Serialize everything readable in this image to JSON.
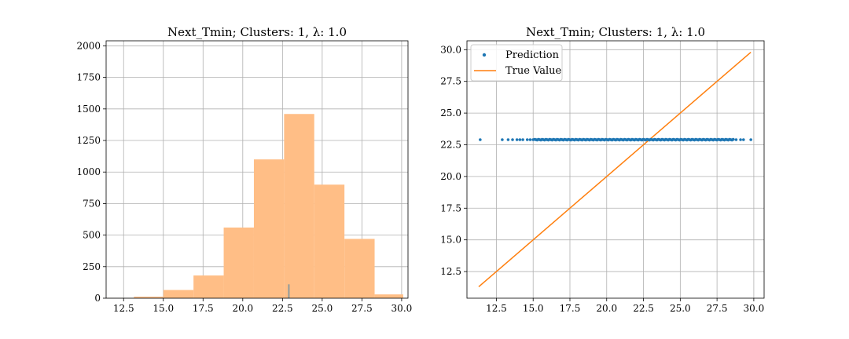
{
  "chart_data": [
    {
      "type": "bar",
      "title": "Next_Tmin; Clusters: 1, λ: 1.0",
      "xlim": [
        11.4,
        30.4
      ],
      "ylim": [
        0,
        2040
      ],
      "xticks": [
        12.5,
        15.0,
        17.5,
        20.0,
        22.5,
        25.0,
        27.5,
        30.0
      ],
      "xtick_labels": [
        "12.5",
        "15.0",
        "17.5",
        "20.0",
        "22.5",
        "25.0",
        "27.5",
        "30.0"
      ],
      "yticks": [
        0,
        250,
        500,
        750,
        1000,
        1250,
        1500,
        1750,
        2000
      ],
      "ytick_labels": [
        "0",
        "250",
        "500",
        "750",
        "1000",
        "1250",
        "1500",
        "1750",
        "2000"
      ],
      "grid": true,
      "color": "#ffbe86",
      "bins": [
        {
          "x0": 11.3,
          "x1": 13.15,
          "value": 1
        },
        {
          "x0": 13.15,
          "x1": 15.0,
          "value": 12
        },
        {
          "x0": 15.0,
          "x1": 16.9,
          "value": 65
        },
        {
          "x0": 16.9,
          "x1": 18.8,
          "value": 180
        },
        {
          "x0": 18.8,
          "x1": 20.7,
          "value": 560
        },
        {
          "x0": 20.7,
          "x1": 22.6,
          "value": 1100
        },
        {
          "x0": 22.6,
          "x1": 24.5,
          "value": 1460
        },
        {
          "x0": 24.5,
          "x1": 26.4,
          "value": 900
        },
        {
          "x0": 26.4,
          "x1": 28.3,
          "value": 470
        },
        {
          "x0": 28.3,
          "x1": 30.1,
          "value": 30
        }
      ],
      "second_series": {
        "color": "#1f77b4",
        "bins": [
          {
            "x0": 22.85,
            "x1": 22.95,
            "value": 110
          }
        ]
      }
    },
    {
      "type": "scatter",
      "title": "Next_Tmin; Clusters: 1, λ: 1.0",
      "xlim": [
        10.5,
        30.7
      ],
      "ylim": [
        10.4,
        30.7
      ],
      "xticks": [
        12.5,
        15.0,
        17.5,
        20.0,
        22.5,
        25.0,
        27.5,
        30.0
      ],
      "xtick_labels": [
        "12.5",
        "15.0",
        "17.5",
        "20.0",
        "22.5",
        "25.0",
        "27.5",
        "30.0"
      ],
      "yticks": [
        12.5,
        15.0,
        17.5,
        20.0,
        22.5,
        25.0,
        27.5,
        30.0
      ],
      "ytick_labels": [
        "12.5",
        "15.0",
        "17.5",
        "20.0",
        "22.5",
        "25.0",
        "27.5",
        "30.0"
      ],
      "grid": true,
      "legend_position": "top-left",
      "series": [
        {
          "name": "Prediction",
          "kind": "scatter",
          "color": "#1f77b4",
          "y": 22.9,
          "sparse_x": [
            11.4,
            12.9,
            13.3,
            13.6,
            13.9,
            14.1,
            14.3,
            14.6,
            14.8,
            15.0,
            28.8,
            29.1,
            29.3,
            29.8
          ],
          "dense_x_range": [
            15.1,
            28.6
          ],
          "dense_count": 160
        },
        {
          "name": "True Value",
          "kind": "line",
          "color": "#ff7f0e",
          "x": [
            11.3,
            29.8
          ],
          "y": [
            11.3,
            29.8
          ]
        }
      ]
    }
  ]
}
